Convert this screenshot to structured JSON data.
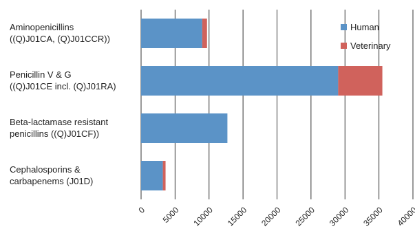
{
  "chart_data": {
    "type": "bar",
    "orientation": "horizontal",
    "stacked": true,
    "categories": [
      [
        "Aminopenicillins",
        "((Q)J01CA, (Q)J01CCR))"
      ],
      [
        "Penicillin V & G",
        "((Q)J01CE incl. (Q)J01RA)"
      ],
      [
        "Beta-lactamase resistant",
        "penicillins ((Q)J01CF))"
      ],
      [
        "Cephalosporins &",
        "carbapenems (J01D)"
      ]
    ],
    "series": [
      {
        "name": "Human",
        "values": [
          9000,
          29000,
          12700,
          3200
        ],
        "color": "#5b93c7"
      },
      {
        "name": "Veterinary",
        "values": [
          700,
          6500,
          0,
          400
        ],
        "color": "#d0625c"
      }
    ],
    "xlim": [
      0,
      40000
    ],
    "xticks": [
      "0",
      "5000",
      "10000",
      "15000",
      "20000",
      "25000",
      "30000",
      "35000",
      "40000"
    ],
    "grid": "vertical",
    "legend_position": "top-right",
    "title": "",
    "xlabel": "",
    "ylabel": ""
  }
}
